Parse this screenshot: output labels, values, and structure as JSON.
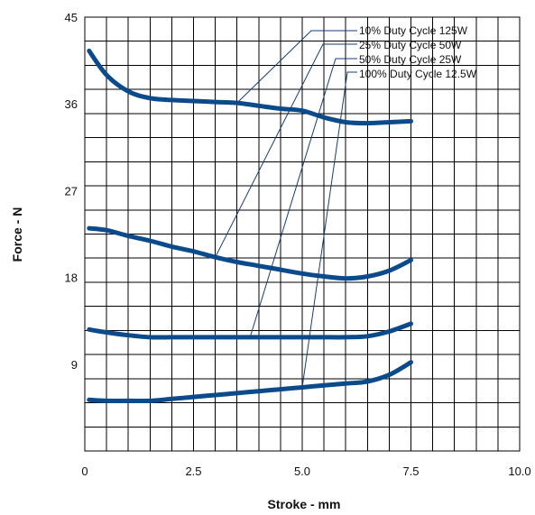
{
  "chart_data": {
    "type": "line",
    "xlabel": "Stroke - mm",
    "ylabel": "Force - N",
    "xlim": [
      0,
      10
    ],
    "ylim": [
      0,
      45
    ],
    "x_ticks": [
      {
        "value": 0,
        "label": "0"
      },
      {
        "value": 2.5,
        "label": "2.5"
      },
      {
        "value": 5,
        "label": "5.0"
      },
      {
        "value": 7.5,
        "label": "7.5"
      },
      {
        "value": 10,
        "label": "10.0"
      }
    ],
    "y_ticks": [
      {
        "value": 9,
        "label": "9"
      },
      {
        "value": 18,
        "label": "18"
      },
      {
        "value": 27,
        "label": "27"
      },
      {
        "value": 36,
        "label": "36"
      },
      {
        "value": 45,
        "label": "45"
      }
    ],
    "grid": true,
    "legend": "top-right",
    "line_color": "#0b4a8b",
    "series": [
      {
        "name": "10% Duty Cycle 125W",
        "x": [
          0.1,
          0.5,
          1.0,
          1.5,
          2.0,
          2.5,
          3.0,
          3.5,
          4.0,
          4.5,
          5.0,
          5.5,
          6.0,
          6.5,
          7.0,
          7.5
        ],
        "y": [
          41.5,
          39.0,
          37.3,
          36.6,
          36.4,
          36.3,
          36.2,
          36.1,
          35.8,
          35.5,
          35.3,
          34.6,
          34.1,
          34.0,
          34.1,
          34.2
        ]
      },
      {
        "name": "25% Duty Cycle 50W",
        "x": [
          0.1,
          0.5,
          1.0,
          1.5,
          2.0,
          2.5,
          3.0,
          3.5,
          4.0,
          4.5,
          5.0,
          5.5,
          6.0,
          6.5,
          7.0,
          7.5
        ],
        "y": [
          23.1,
          22.9,
          22.3,
          21.8,
          21.2,
          20.7,
          20.1,
          19.6,
          19.2,
          18.8,
          18.4,
          18.1,
          17.9,
          18.1,
          18.7,
          19.8
        ]
      },
      {
        "name": "50% Duty Cycle 25W",
        "x": [
          0.1,
          0.5,
          1.0,
          1.5,
          2.0,
          2.5,
          3.0,
          3.5,
          4.0,
          4.5,
          5.0,
          5.5,
          6.0,
          6.5,
          7.0,
          7.5
        ],
        "y": [
          12.6,
          12.3,
          12.0,
          11.8,
          11.8,
          11.8,
          11.8,
          11.8,
          11.8,
          11.8,
          11.8,
          11.8,
          11.8,
          11.9,
          12.4,
          13.2
        ]
      },
      {
        "name": "100% Duty Cycle 12.5W",
        "x": [
          0.1,
          0.5,
          1.0,
          1.5,
          2.0,
          2.5,
          3.0,
          3.5,
          4.0,
          4.5,
          5.0,
          5.5,
          6.0,
          6.5,
          7.0,
          7.5
        ],
        "y": [
          5.3,
          5.2,
          5.2,
          5.2,
          5.4,
          5.6,
          5.8,
          6.0,
          6.2,
          6.4,
          6.6,
          6.8,
          7.0,
          7.2,
          7.9,
          9.2
        ]
      }
    ]
  }
}
